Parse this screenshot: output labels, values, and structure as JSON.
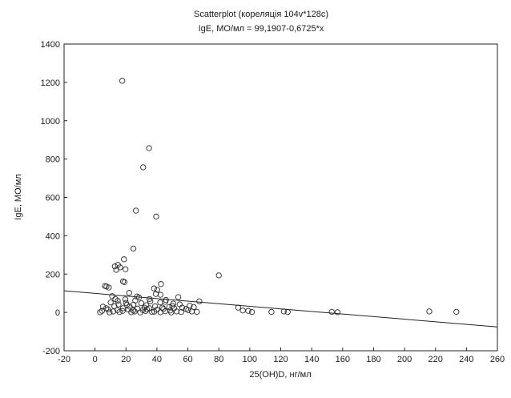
{
  "chart_data": {
    "type": "scatter",
    "title": "Scatterplot (кореляція 104v*128c)",
    "subtitle": "IgE, МО/мл = 99,1907-0,6725*x",
    "xlabel": "25(OH)D, нг/мл",
    "ylabel": "IgE, МО/мл",
    "xlim": [
      -20,
      260
    ],
    "ylim": [
      -200,
      1400
    ],
    "x_ticks": [
      -20,
      0,
      20,
      40,
      60,
      80,
      100,
      120,
      140,
      160,
      180,
      200,
      220,
      240,
      260
    ],
    "y_ticks": [
      -200,
      0,
      200,
      400,
      600,
      800,
      1000,
      1200,
      1400
    ],
    "grid": false,
    "regression": {
      "intercept": 99.1907,
      "slope": -0.6725
    },
    "points": [
      [
        17.6,
        1208
      ],
      [
        34.9,
        857
      ],
      [
        31.1,
        757
      ],
      [
        26.4,
        531
      ],
      [
        39.5,
        500
      ],
      [
        24.8,
        333
      ],
      [
        80,
        193
      ],
      [
        18.7,
        277
      ],
      [
        12.8,
        240
      ],
      [
        14.8,
        248
      ],
      [
        16.2,
        235
      ],
      [
        19.7,
        225
      ],
      [
        13.7,
        222
      ],
      [
        18.1,
        162
      ],
      [
        19,
        158
      ],
      [
        42.6,
        148
      ],
      [
        6.4,
        138
      ],
      [
        7.4,
        135
      ],
      [
        8.9,
        130
      ],
      [
        38.1,
        125
      ],
      [
        40.2,
        118
      ],
      [
        22.1,
        102
      ],
      [
        39.3,
        96
      ],
      [
        42.3,
        92
      ],
      [
        11.1,
        85
      ],
      [
        27.1,
        83
      ],
      [
        28.4,
        78
      ],
      [
        53.8,
        80
      ],
      [
        13.1,
        70
      ],
      [
        19.6,
        68
      ],
      [
        35.2,
        70
      ],
      [
        45.8,
        65
      ],
      [
        14.7,
        60
      ],
      [
        26,
        62
      ],
      [
        35.7,
        58
      ],
      [
        45.4,
        55
      ],
      [
        67.4,
        58
      ],
      [
        10.1,
        52
      ],
      [
        20,
        50
      ],
      [
        29.9,
        48
      ],
      [
        42.1,
        52
      ],
      [
        50.6,
        46
      ],
      [
        15.2,
        42
      ],
      [
        24.8,
        40
      ],
      [
        33.1,
        38
      ],
      [
        54.7,
        42
      ],
      [
        61.2,
        35
      ],
      [
        5.1,
        30
      ],
      [
        12.5,
        32
      ],
      [
        22.4,
        30
      ],
      [
        38.8,
        32
      ],
      [
        47.9,
        28
      ],
      [
        56.3,
        25
      ],
      [
        63.8,
        28
      ],
      [
        92.5,
        25
      ],
      [
        18.1,
        22
      ],
      [
        27.4,
        20
      ],
      [
        35.2,
        22
      ],
      [
        44.2,
        18
      ],
      [
        51.1,
        22
      ],
      [
        58.9,
        18
      ],
      [
        8.4,
        15
      ],
      [
        14.5,
        12
      ],
      [
        21.5,
        15
      ],
      [
        30.9,
        12
      ],
      [
        40,
        14
      ],
      [
        48.6,
        10
      ],
      [
        60.2,
        12
      ],
      [
        95.5,
        10
      ],
      [
        4.5,
        8
      ],
      [
        11.8,
        5
      ],
      [
        17.9,
        8
      ],
      [
        25.6,
        5
      ],
      [
        32.7,
        7
      ],
      [
        38.3,
        4
      ],
      [
        45.4,
        6
      ],
      [
        52.7,
        5
      ],
      [
        62.5,
        5
      ],
      [
        65.8,
        3
      ],
      [
        99,
        8
      ],
      [
        101.4,
        2
      ],
      [
        114,
        3
      ],
      [
        122,
        5
      ],
      [
        124.5,
        2
      ],
      [
        153,
        3
      ],
      [
        156.7,
        1
      ],
      [
        216,
        5
      ],
      [
        233.5,
        3
      ],
      [
        3.3,
        1
      ],
      [
        9.4,
        0
      ],
      [
        15.8,
        2
      ],
      [
        23.4,
        1
      ],
      [
        29.2,
        0
      ],
      [
        36.8,
        2
      ],
      [
        42.3,
        1
      ],
      [
        49.2,
        0
      ],
      [
        55.7,
        2
      ],
      [
        24.7,
        10
      ],
      [
        33.6,
        16
      ],
      [
        43.5,
        25
      ],
      [
        49.9,
        34
      ],
      [
        7.3,
        22
      ],
      [
        20.6,
        40
      ],
      [
        32,
        25
      ]
    ]
  }
}
